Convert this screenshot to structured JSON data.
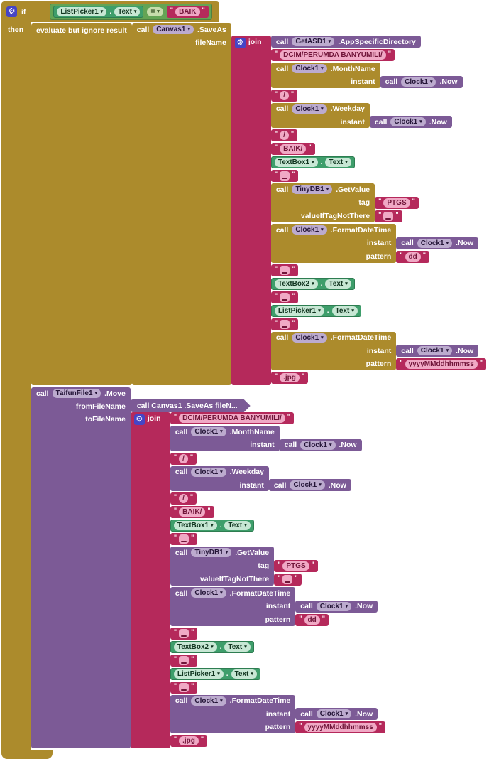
{
  "colors": {
    "control": "#AC8B2C",
    "purple": "#7C5A96",
    "purplePill": "#BCABCE",
    "text": "#B5295B",
    "textPill": "#F0A9C5",
    "getter": "#3E9E6B",
    "greenPill": "#C7E7D4",
    "logic": "#64A455",
    "logicPill": "#C6DCAB",
    "gear": "#4545C6",
    "canvas": "#FFFFFF"
  },
  "labels": {
    "call": "call"
  },
  "root": {
    "type": "if",
    "label": "if",
    "then_label": "then",
    "condition": {
      "type": "eq",
      "op": "=",
      "left": {
        "type": "getter",
        "component": "ListPicker1",
        "property": "Text"
      },
      "right": {
        "type": "str",
        "text": "BAIK"
      }
    },
    "then": [
      {
        "type": "eval",
        "label": "evaluate but ignore result",
        "child": {
          "type": "call",
          "component": "Canvas1",
          "method": ".SaveAs",
          "params": [
            {
              "label": "fileName",
              "child": {
                "type": "join",
                "label": "join",
                "items": [
                  {
                    "type": "call",
                    "component": "GetASD1",
                    "method": ".AppSpecificDirectory"
                  },
                  {
                    "type": "str",
                    "text": "DCIM/PERUMDA BANYUMILI/"
                  },
                  {
                    "type": "call",
                    "component": "Clock1",
                    "method": ".MonthName",
                    "params": [
                      {
                        "label": "instant",
                        "child": {
                          "type": "call",
                          "component": "Clock1",
                          "method": ".Now"
                        }
                      }
                    ]
                  },
                  {
                    "type": "str",
                    "text": "/"
                  },
                  {
                    "type": "call",
                    "component": "Clock1",
                    "method": ".Weekday",
                    "params": [
                      {
                        "label": "instant",
                        "child": {
                          "type": "call",
                          "component": "Clock1",
                          "method": ".Now"
                        }
                      }
                    ]
                  },
                  {
                    "type": "str",
                    "text": "/"
                  },
                  {
                    "type": "str",
                    "text": "BAIK/"
                  },
                  {
                    "type": "getter",
                    "component": "TextBox1",
                    "property": "Text"
                  },
                  {
                    "type": "str",
                    "text": " ",
                    "space": true
                  },
                  {
                    "type": "call",
                    "component": "TinyDB1",
                    "method": ".GetValue",
                    "params": [
                      {
                        "label": "tag",
                        "child": {
                          "type": "str",
                          "text": "PTGS"
                        }
                      },
                      {
                        "label": "valueIfTagNotThere",
                        "child": {
                          "type": "str",
                          "text": " ",
                          "space": true
                        }
                      }
                    ]
                  },
                  {
                    "type": "call",
                    "component": "Clock1",
                    "method": ".FormatDateTime",
                    "params": [
                      {
                        "label": "instant",
                        "child": {
                          "type": "call",
                          "component": "Clock1",
                          "method": ".Now"
                        }
                      },
                      {
                        "label": "pattern",
                        "child": {
                          "type": "str",
                          "text": "dd"
                        }
                      }
                    ]
                  },
                  {
                    "type": "str",
                    "text": " ",
                    "space": true
                  },
                  {
                    "type": "getter",
                    "component": "TextBox2",
                    "property": "Text"
                  },
                  {
                    "type": "str",
                    "text": " ",
                    "space": true
                  },
                  {
                    "type": "getter",
                    "component": "ListPicker1",
                    "property": "Text"
                  },
                  {
                    "type": "str",
                    "text": " ",
                    "space": true
                  },
                  {
                    "type": "call",
                    "component": "Clock1",
                    "method": ".FormatDateTime",
                    "params": [
                      {
                        "label": "instant",
                        "child": {
                          "type": "call",
                          "component": "Clock1",
                          "method": ".Now"
                        }
                      },
                      {
                        "label": "pattern",
                        "child": {
                          "type": "str",
                          "text": "yyyyMMddhhmmss"
                        }
                      }
                    ]
                  },
                  {
                    "type": "str",
                    "text": ".jpg"
                  }
                ]
              }
            }
          ]
        }
      },
      {
        "type": "call",
        "component": "TaifunFile1",
        "method": ".Move",
        "params": [
          {
            "label": "fromFileName",
            "child": {
              "type": "collapsed",
              "text": "call Canvas1 .SaveAs fileN..."
            }
          },
          {
            "label": "toFileName",
            "child": {
              "type": "join",
              "label": "join",
              "items": [
                {
                  "type": "str",
                  "text": "DCIM/PERUMDA BANYUMILI/"
                },
                {
                  "type": "call",
                  "component": "Clock1",
                  "method": ".MonthName",
                  "params": [
                    {
                      "label": "instant",
                      "child": {
                        "type": "call",
                        "component": "Clock1",
                        "method": ".Now"
                      }
                    }
                  ]
                },
                {
                  "type": "str",
                  "text": "/"
                },
                {
                  "type": "call",
                  "component": "Clock1",
                  "method": ".Weekday",
                  "params": [
                    {
                      "label": "instant",
                      "child": {
                        "type": "call",
                        "component": "Clock1",
                        "method": ".Now"
                      }
                    }
                  ]
                },
                {
                  "type": "str",
                  "text": "/"
                },
                {
                  "type": "str",
                  "text": "BAIK/"
                },
                {
                  "type": "getter",
                  "component": "TextBox1",
                  "property": "Text"
                },
                {
                  "type": "str",
                  "text": " ",
                  "space": true
                },
                {
                  "type": "call",
                  "component": "TinyDB1",
                  "method": ".GetValue",
                  "params": [
                    {
                      "label": "tag",
                      "child": {
                        "type": "str",
                        "text": "PTGS"
                      }
                    },
                    {
                      "label": "valueIfTagNotThere",
                      "child": {
                        "type": "str",
                        "text": " ",
                        "space": true
                      }
                    }
                  ]
                },
                {
                  "type": "call",
                  "component": "Clock1",
                  "method": ".FormatDateTime",
                  "params": [
                    {
                      "label": "instant",
                      "child": {
                        "type": "call",
                        "component": "Clock1",
                        "method": ".Now"
                      }
                    },
                    {
                      "label": "pattern",
                      "child": {
                        "type": "str",
                        "text": "dd"
                      }
                    }
                  ]
                },
                {
                  "type": "str",
                  "text": " ",
                  "space": true
                },
                {
                  "type": "getter",
                  "component": "TextBox2",
                  "property": "Text"
                },
                {
                  "type": "str",
                  "text": " ",
                  "space": true
                },
                {
                  "type": "getter",
                  "component": "ListPicker1",
                  "property": "Text"
                },
                {
                  "type": "str",
                  "text": " ",
                  "space": true
                },
                {
                  "type": "call",
                  "component": "Clock1",
                  "method": ".FormatDateTime",
                  "params": [
                    {
                      "label": "instant",
                      "child": {
                        "type": "call",
                        "component": "Clock1",
                        "method": ".Now"
                      }
                    },
                    {
                      "label": "pattern",
                      "child": {
                        "type": "str",
                        "text": "yyyyMMddhhmmss"
                      }
                    }
                  ]
                },
                {
                  "type": "str",
                  "text": ".jpg"
                }
              ]
            }
          }
        ]
      }
    ]
  }
}
